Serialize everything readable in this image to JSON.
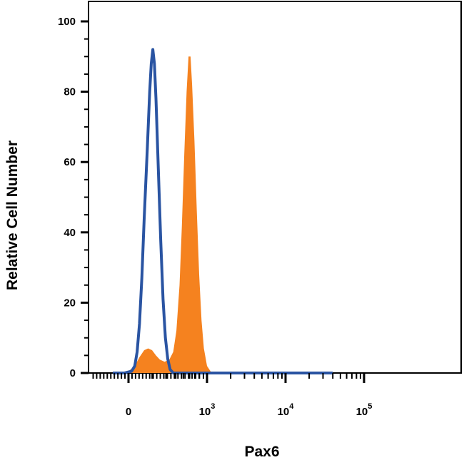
{
  "chart_data": {
    "type": "area",
    "xlabel": "Pax6",
    "ylabel": "Relative Cell Number",
    "ylim": [
      0,
      100
    ],
    "y_ticks": [
      {
        "value": 0,
        "label": "0"
      },
      {
        "value": 20,
        "label": "20"
      },
      {
        "value": 40,
        "label": "40"
      },
      {
        "value": 60,
        "label": "60"
      },
      {
        "value": 80,
        "label": "80"
      },
      {
        "value": 100,
        "label": "100"
      }
    ],
    "x_scale": "biexponential",
    "x_ticks": [
      {
        "label": "0",
        "exp": ""
      },
      {
        "label": "10",
        "exp": "3"
      },
      {
        "label": "10",
        "exp": "4"
      },
      {
        "label": "10",
        "exp": "5"
      }
    ],
    "grid": false,
    "legend": "none",
    "series": [
      {
        "style": "filled",
        "color": "#f5821f",
        "points": [
          [
            -0.2,
            0
          ],
          [
            0,
            0.5
          ],
          [
            0.08,
            2
          ],
          [
            0.14,
            4.5
          ],
          [
            0.2,
            6.5
          ],
          [
            0.25,
            7
          ],
          [
            0.3,
            6.5
          ],
          [
            0.35,
            5
          ],
          [
            0.4,
            3.8
          ],
          [
            0.46,
            3.2
          ],
          [
            0.52,
            3.8
          ],
          [
            0.57,
            6
          ],
          [
            0.61,
            12
          ],
          [
            0.65,
            25
          ],
          [
            0.68,
            42
          ],
          [
            0.71,
            62
          ],
          [
            0.74,
            80
          ],
          [
            0.765,
            90
          ],
          [
            0.79,
            90
          ],
          [
            0.81,
            82
          ],
          [
            0.84,
            66
          ],
          [
            0.87,
            46
          ],
          [
            0.9,
            28
          ],
          [
            0.93,
            15
          ],
          [
            0.96,
            7
          ],
          [
            1.0,
            2
          ],
          [
            1.05,
            0.3
          ],
          [
            1.12,
            0
          ],
          [
            2.6,
            0
          ]
        ]
      },
      {
        "style": "outline",
        "color": "#2a54a2",
        "points": [
          [
            -0.2,
            0
          ],
          [
            -0.05,
            0
          ],
          [
            0.04,
            0.5
          ],
          [
            0.08,
            2
          ],
          [
            0.11,
            6
          ],
          [
            0.14,
            14
          ],
          [
            0.17,
            27
          ],
          [
            0.2,
            44
          ],
          [
            0.24,
            64
          ],
          [
            0.27,
            80
          ],
          [
            0.29,
            88
          ],
          [
            0.31,
            92
          ],
          [
            0.33,
            88
          ],
          [
            0.35,
            78
          ],
          [
            0.38,
            58
          ],
          [
            0.41,
            38
          ],
          [
            0.44,
            21
          ],
          [
            0.47,
            10
          ],
          [
            0.5,
            4
          ],
          [
            0.53,
            1
          ],
          [
            0.57,
            0
          ],
          [
            2.6,
            0
          ]
        ]
      }
    ]
  }
}
